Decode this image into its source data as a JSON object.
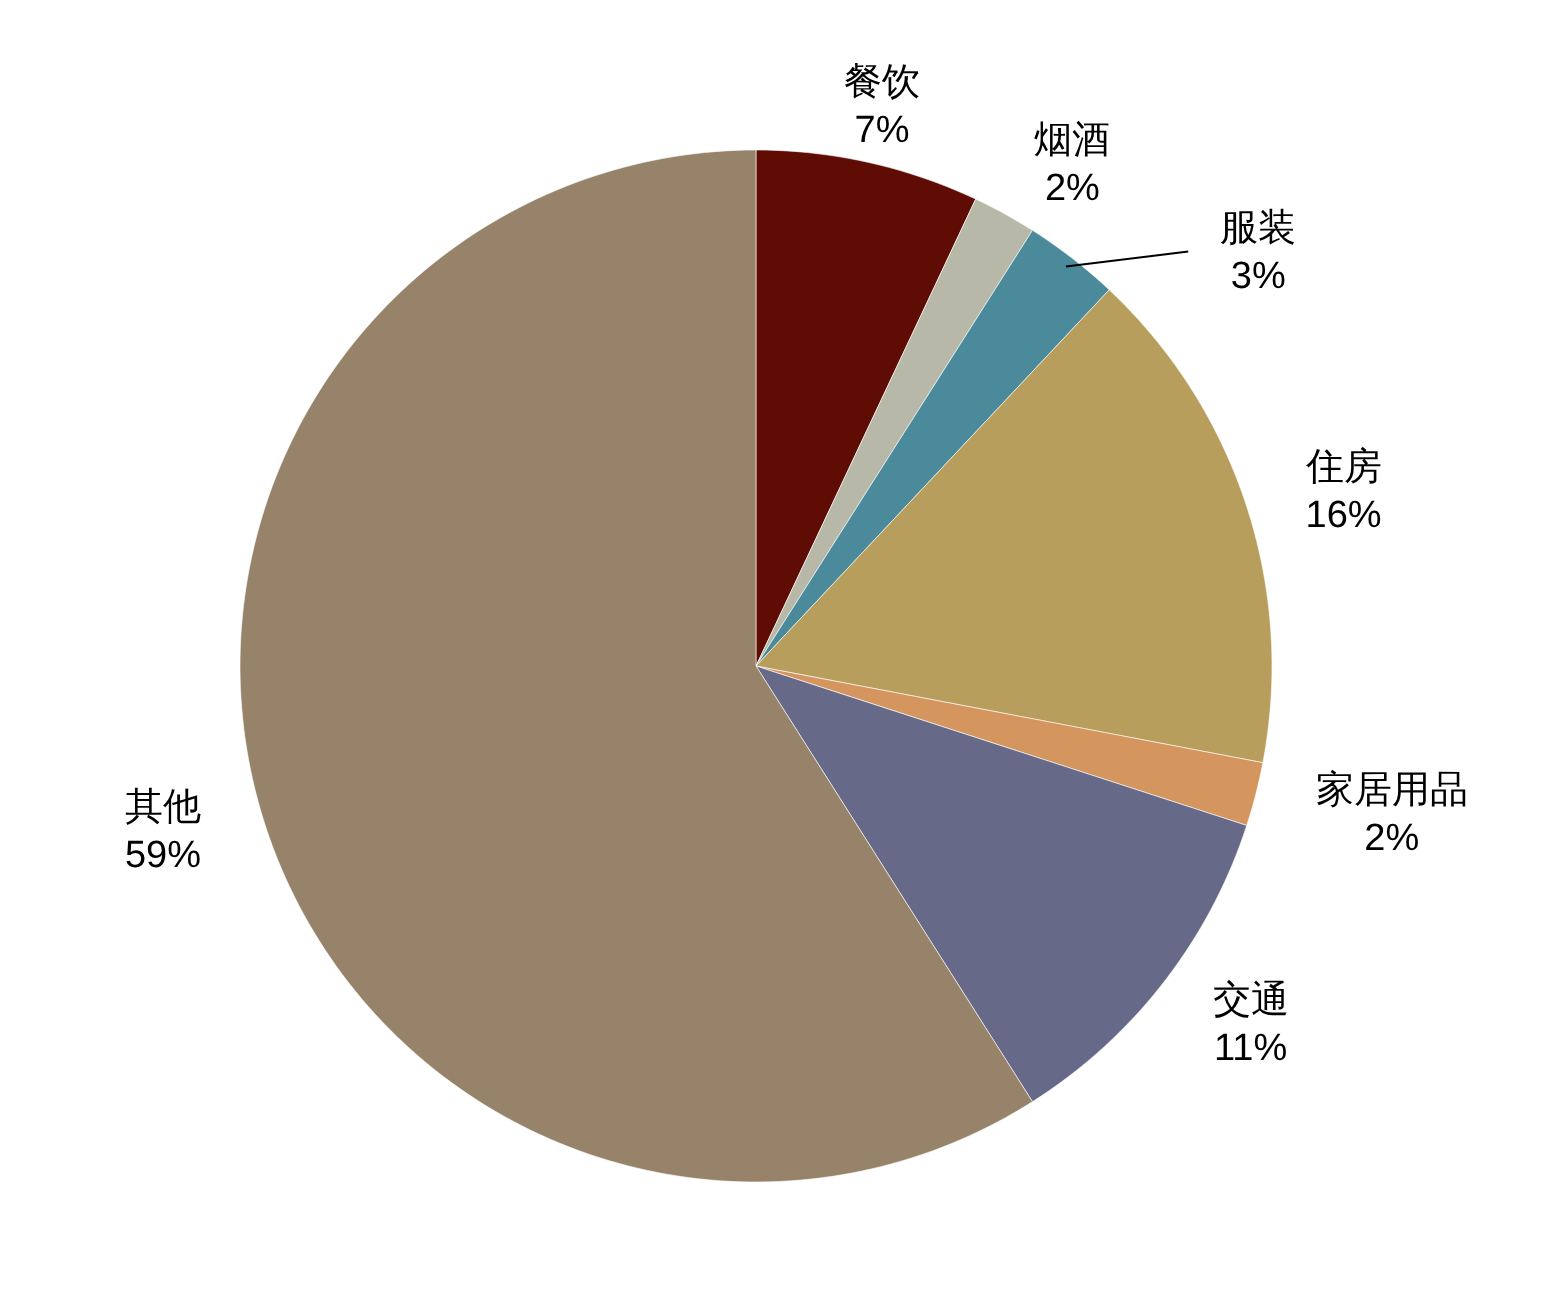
{
  "chart_data": {
    "type": "pie",
    "categories": [
      "餐饮",
      "烟酒",
      "服装",
      "住房",
      "家居用品",
      "交通",
      "其他"
    ],
    "values": [
      7,
      2,
      3,
      16,
      2,
      11,
      59
    ],
    "colors": [
      "#5e0c04",
      "#b8b8a8",
      "#4a8a9a",
      "#b89e5c",
      "#d4955e",
      "#666a88",
      "#96836a"
    ],
    "value_labels": [
      "7%",
      "2%",
      "3%",
      "16%",
      "2%",
      "11%",
      "59%"
    ],
    "legend": false
  }
}
